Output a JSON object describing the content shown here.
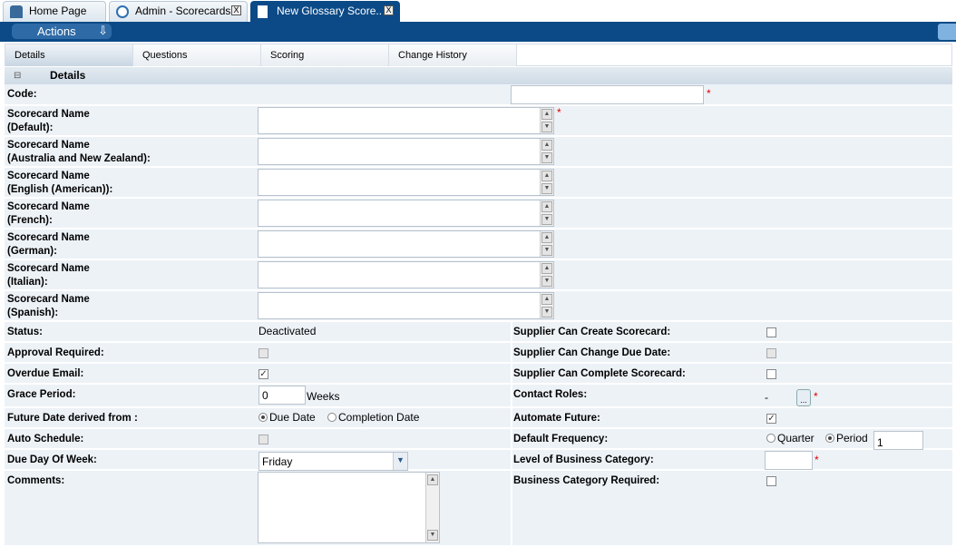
{
  "page_tabs": [
    {
      "label": "Home Page",
      "icon": "home-icon"
    },
    {
      "label": "Admin - Scorecards",
      "icon": "gear-icon",
      "close": "X"
    },
    {
      "label": "New Glossary Score..",
      "icon": "document-icon",
      "close": "X",
      "active": true
    }
  ],
  "toolbar": {
    "actions_label": "Actions",
    "actions_icon": "arrow-down-icon"
  },
  "tabs": [
    "Details",
    "Questions",
    "Scoring",
    "Change History"
  ],
  "section": {
    "title": "Details",
    "collapse_icon": "⊟"
  },
  "fields": {
    "code": {
      "label": "Code:",
      "value": ""
    },
    "names": [
      {
        "label1": "Scorecard Name",
        "label2": "(Default):",
        "required": true
      },
      {
        "label1": "Scorecard Name",
        "label2": "(Australia and New Zealand):"
      },
      {
        "label1": "Scorecard Name",
        "label2": "(English (American)):"
      },
      {
        "label1": "Scorecard Name",
        "label2": "(French):"
      },
      {
        "label1": "Scorecard Name",
        "label2": "(German):"
      },
      {
        "label1": "Scorecard Name",
        "label2": "(Italian):"
      },
      {
        "label1": "Scorecard Name",
        "label2": "(Spanish):"
      }
    ],
    "status": {
      "label": "Status:",
      "value": "Deactivated"
    },
    "approval_required": {
      "label": "Approval Required:",
      "checked": false,
      "disabled": true
    },
    "overdue_email": {
      "label": "Overdue Email:",
      "checked": true
    },
    "grace_period": {
      "label": "Grace Period:",
      "value": "0",
      "unit": "Weeks"
    },
    "future_date": {
      "label": "Future Date derived from :",
      "options": [
        "Due Date",
        "Completion Date"
      ],
      "selected": "Due Date"
    },
    "auto_schedule": {
      "label": "Auto Schedule:",
      "checked": false,
      "disabled": true
    },
    "due_day": {
      "label": "Due Day Of Week:",
      "value": "Friday"
    },
    "comments": {
      "label": "Comments:",
      "value": ""
    },
    "supplier_create": {
      "label": "Supplier Can Create Scorecard:",
      "checked": false
    },
    "supplier_change_due": {
      "label": "Supplier Can Change Due Date:",
      "checked": false,
      "disabled": true
    },
    "supplier_complete": {
      "label": "Supplier Can Complete Scorecard:",
      "checked": false
    },
    "contact_roles": {
      "label": "Contact Roles:",
      "value": "-",
      "button": "..."
    },
    "automate_future": {
      "label": "Automate Future:",
      "checked": true
    },
    "default_frequency": {
      "label": "Default Frequency:",
      "options": [
        "Quarter",
        "Period"
      ],
      "selected": "Period",
      "value": "1"
    },
    "level_business_category": {
      "label": "Level of Business Category:",
      "value": ""
    },
    "business_category_required": {
      "label": "Business Category Required:",
      "checked": false
    }
  },
  "required_marker": "*",
  "check_mark": "✓",
  "colors": {
    "brand": "#0b4a87",
    "row_bg": "#edf2f7",
    "required": "#dd0000"
  }
}
